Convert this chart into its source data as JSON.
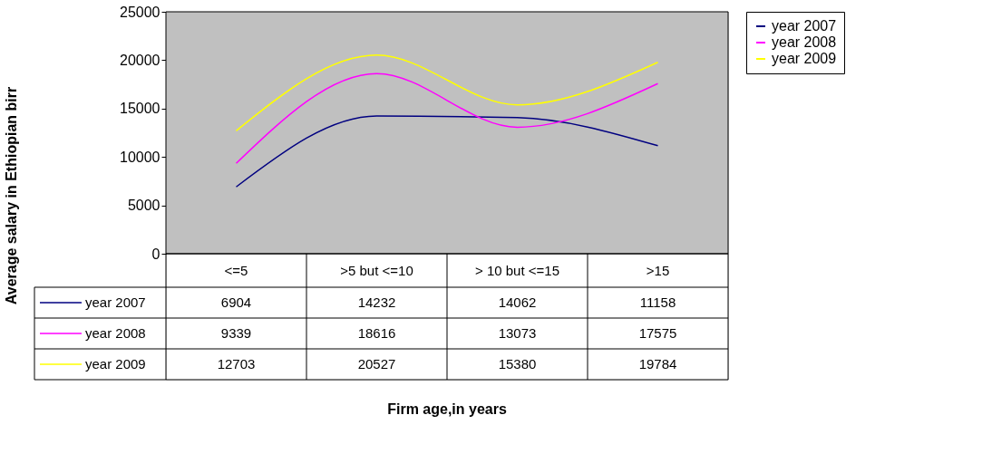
{
  "chart_data": {
    "type": "line",
    "annotations": [
      "Firm age,in  years",
      "Average salary in Ethiopian birr"
    ],
    "categories": [
      "<=5",
      ">5 but <=10",
      "> 10 but <=15",
      ">15"
    ],
    "series": [
      {
        "name": "year 2007",
        "color": "#000080",
        "values": [
          6904,
          14232,
          14062,
          11158
        ]
      },
      {
        "name": "year 2008",
        "color": "#ff00ff",
        "values": [
          9339,
          18616,
          13073,
          17575
        ]
      },
      {
        "name": "year 2009",
        "color": "#ffff00",
        "values": [
          12703,
          20527,
          15380,
          19784
        ]
      }
    ],
    "ylim": [
      0,
      25000
    ],
    "yticks": [
      0,
      5000,
      10000,
      15000,
      20000,
      25000
    ],
    "grid": false,
    "legend": "right",
    "data_labels": true,
    "line_style": "solid",
    "marker": "none"
  }
}
